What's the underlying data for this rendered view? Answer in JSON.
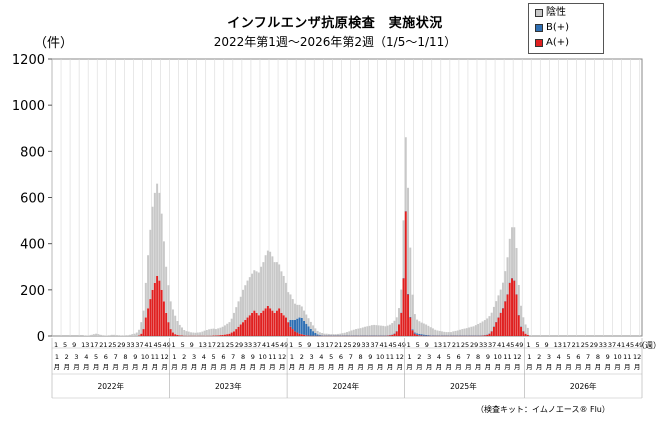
{
  "title": "インフルエンザ抗原検査　実施状況",
  "subtitle": "2022年第1週〜2026年第2週（1/5〜1/11）",
  "footnote": "（検査キット：イムノエース® Flu）",
  "chart_data": {
    "type": "bar",
    "stacked": true,
    "ylabel": "（件）",
    "xlabel": "（週）",
    "ylim": [
      0,
      1200
    ],
    "yticks": [
      0,
      200,
      400,
      600,
      800,
      1000,
      1200
    ],
    "grid": "vertical",
    "legend_position": "top-right",
    "x_week_ticks": [
      "1",
      "5",
      "9",
      "13",
      "17",
      "21",
      "25",
      "29",
      "33",
      "37",
      "41",
      "45",
      "49"
    ],
    "x_month_ticks": [
      "1月",
      "2月",
      "3月",
      "4月",
      "5月",
      "6月",
      "7月",
      "8月",
      "9月",
      "10月",
      "11月",
      "12月"
    ],
    "x_years": [
      "2022年",
      "2023年",
      "2024年",
      "2025年",
      "2026年"
    ],
    "series": [
      {
        "name": "陰性",
        "color": "#c8c8c8",
        "segments": [
          {
            "weeks": [
              0,
              40
            ],
            "values": [
              0,
              0,
              0,
              0,
              0,
              0,
              0,
              0,
              0,
              0,
              0,
              0,
              0,
              0,
              2,
              2,
              3,
              5,
              8,
              10,
              8,
              5,
              3,
              2,
              2,
              3,
              5,
              5,
              4,
              3,
              2,
              2,
              3,
              3,
              5,
              8,
              10,
              15,
              25,
              50,
              80
            ],
            "note": "2022-01-01 .. 2022-10-08"
          },
          {
            "weeks": [
              41,
              52
            ],
            "values": [
              150,
              230,
              300,
              360,
              390,
              400,
              380,
              330,
              260,
              200,
              160,
              120
            ]
          },
          {
            "weeks": [
              53,
              104
            ],
            "values": [
              100,
              80,
              60,
              45,
              35,
              25,
              20,
              18,
              15,
              14,
              13,
              14,
              15,
              18,
              22,
              25,
              28,
              30,
              30,
              28,
              30,
              32,
              35,
              40,
              45,
              50,
              60,
              80,
              95,
              110,
              120,
              140,
              150,
              160,
              165,
              170,
              175,
              180,
              185,
              200,
              210,
              230,
              240,
              245,
              235,
              220,
              210,
              190,
              180,
              170,
              150,
              130
            ],
            "note": "2023"
          },
          {
            "weeks": [
              105,
              156
            ],
            "values": [
              110,
              90,
              70,
              60,
              55,
              50,
              45,
              40,
              35,
              30,
              25,
              20,
              15,
              12,
              10,
              8,
              8,
              7,
              6,
              6,
              6,
              7,
              8,
              10,
              12,
              15,
              18,
              22,
              25,
              28,
              30,
              32,
              35,
              38,
              40,
              42,
              45,
              46,
              45,
              44,
              43,
              42,
              40,
              42,
              45,
              50,
              55,
              60,
              70,
              100,
              250,
              320
            ],
            "note": "2024"
          },
          {
            "weeks": [
              157,
              208
            ],
            "values": [
              460,
              300,
              150,
              80,
              60,
              55,
              50,
              48,
              45,
              40,
              35,
              30,
              25,
              22,
              20,
              18,
              16,
              15,
              15,
              15,
              18,
              20,
              22,
              25,
              28,
              30,
              32,
              35,
              38,
              40,
              45,
              50,
              55,
              60,
              65,
              70,
              75,
              80,
              85,
              90,
              95,
              100,
              110,
              130,
              160,
              190,
              220,
              230,
              200,
              130,
              90,
              60
            ],
            "note": "2025"
          },
          {
            "weeks": [
              209,
              210
            ],
            "values": [
              40,
              30
            ],
            "note": "2026"
          }
        ]
      },
      {
        "name": "B(+)",
        "color": "#2f6fb3",
        "segments": [
          {
            "weeks": [
              53,
              104
            ],
            "values": [
              0,
              0,
              0,
              0,
              0,
              0,
              0,
              0,
              0,
              0,
              0,
              0,
              0,
              0,
              0,
              0,
              0,
              0,
              0,
              0,
              0,
              0,
              0,
              0,
              0,
              0,
              0,
              0,
              0,
              0,
              0,
              0,
              0,
              0,
              0,
              0,
              0,
              0,
              0,
              0,
              0,
              0,
              0,
              0,
              0,
              0,
              0,
              0,
              0,
              0,
              0,
              0
            ]
          },
          {
            "weeks": [
              105,
              156
            ],
            "values": [
              30,
              40,
              50,
              60,
              70,
              70,
              60,
              50,
              40,
              30,
              20,
              12,
              6,
              3,
              2,
              1,
              1,
              1,
              1,
              1,
              1,
              1,
              1,
              1,
              1,
              1,
              1,
              1,
              1,
              1,
              1,
              1,
              1,
              1,
              1,
              1,
              1,
              1,
              1,
              1,
              1,
              1,
              1,
              1,
              1,
              1,
              1,
              1,
              1,
              1,
              1,
              1
            ]
          },
          {
            "weeks": [
              157,
              208
            ],
            "values": [
              2,
              3,
              4,
              5,
              6,
              6,
              6,
              5,
              4,
              3,
              2,
              2,
              1,
              1,
              1,
              1,
              1,
              1,
              1,
              1,
              1,
              1,
              1,
              1,
              1,
              1,
              1,
              1,
              1,
              1,
              1,
              1,
              1,
              1,
              1,
              1,
              1,
              1,
              1,
              1,
              1,
              1,
              1,
              1,
              1,
              1,
              1,
              1,
              1,
              1,
              1,
              1
            ]
          }
        ]
      },
      {
        "name": "A(+)",
        "color": "#e02020",
        "segments": [
          {
            "weeks": [
              0,
              40
            ],
            "values": [
              0,
              0,
              0,
              0,
              0,
              0,
              0,
              0,
              0,
              0,
              0,
              0,
              0,
              0,
              0,
              0,
              0,
              0,
              0,
              0,
              0,
              0,
              0,
              0,
              0,
              0,
              0,
              0,
              0,
              0,
              0,
              0,
              0,
              0,
              0,
              0,
              0,
              0,
              2,
              10,
              30
            ]
          },
          {
            "weeks": [
              41,
              52
            ],
            "values": [
              80,
              120,
              160,
              200,
              230,
              260,
              240,
              200,
              150,
              100,
              60,
              30
            ]
          },
          {
            "weeks": [
              53,
              104
            ],
            "values": [
              15,
              8,
              5,
              3,
              2,
              1,
              1,
              1,
              1,
              1,
              1,
              1,
              1,
              1,
              1,
              1,
              1,
              1,
              2,
              2,
              3,
              4,
              5,
              6,
              8,
              10,
              15,
              20,
              30,
              40,
              50,
              60,
              70,
              80,
              90,
              100,
              110,
              100,
              90,
              100,
              110,
              120,
              130,
              120,
              110,
              100,
              110,
              120,
              100,
              90,
              80,
              60
            ]
          },
          {
            "weeks": [
              105,
              156
            ],
            "values": [
              40,
              30,
              20,
              15,
              10,
              8,
              5,
              3,
              2,
              1,
              1,
              1,
              1,
              1,
              1,
              1,
              1,
              1,
              1,
              1,
              1,
              1,
              1,
              1,
              1,
              1,
              1,
              1,
              1,
              1,
              1,
              1,
              1,
              1,
              1,
              1,
              1,
              1,
              1,
              1,
              1,
              1,
              1,
              2,
              3,
              5,
              10,
              20,
              50,
              100,
              250,
              540
            ]
          },
          {
            "weeks": [
              157,
              208
            ],
            "values": [
              180,
              80,
              25,
              10,
              5,
              3,
              2,
              1,
              1,
              1,
              1,
              1,
              1,
              1,
              1,
              1,
              1,
              1,
              1,
              1,
              1,
              1,
              1,
              1,
              1,
              1,
              1,
              1,
              1,
              1,
              1,
              1,
              1,
              2,
              3,
              5,
              10,
              20,
              40,
              60,
              80,
              100,
              120,
              150,
              180,
              230,
              250,
              240,
              180,
              90,
              40,
              20
            ]
          },
          {
            "weeks": [
              209,
              210
            ],
            "values": [
              10,
              5
            ]
          }
        ]
      }
    ]
  }
}
